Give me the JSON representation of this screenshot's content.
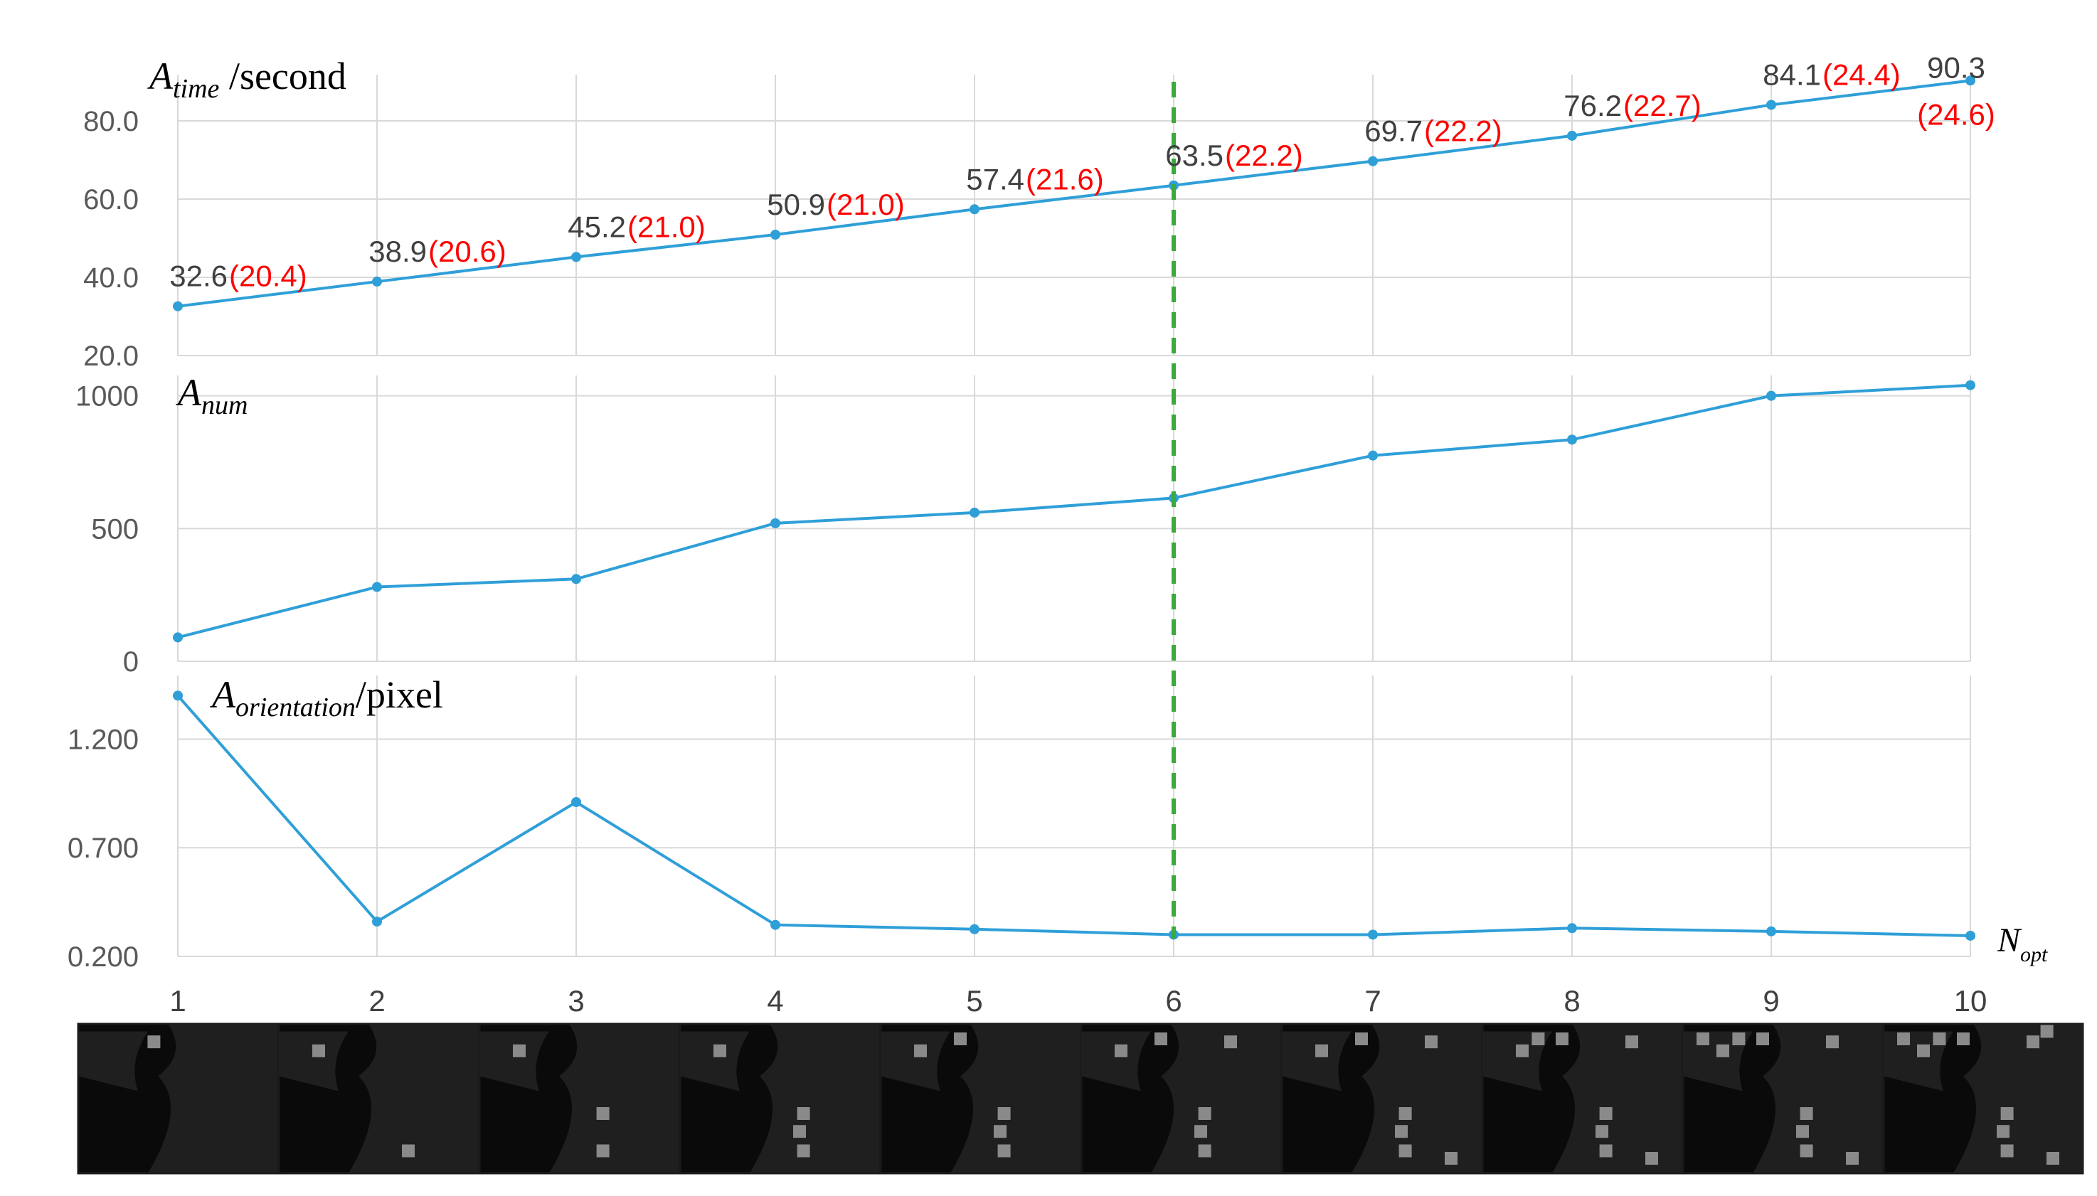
{
  "chart_data": {
    "type": "line",
    "x": [
      1,
      2,
      3,
      4,
      5,
      6,
      7,
      8,
      9,
      10
    ],
    "x_tick_labels": [
      "1",
      "2",
      "3",
      "4",
      "5",
      "6",
      "7",
      "8",
      "9",
      "10"
    ],
    "xlabel": {
      "base": "N",
      "sub": "opt"
    },
    "highlight_x": 6,
    "panels": [
      {
        "ylabel": {
          "base": "A",
          "sub": "time",
          "suffix": " /second"
        },
        "ylim": [
          20,
          90
        ],
        "y_ticks": [
          20,
          40,
          60,
          80
        ],
        "y_tick_labels": [
          "20.0",
          "40.0",
          "60.0",
          "80.0"
        ],
        "values": [
          32.6,
          38.9,
          45.2,
          50.9,
          57.4,
          63.5,
          69.7,
          76.2,
          84.1,
          90.3
        ],
        "value_labels": [
          "32.6",
          "38.9",
          "45.2",
          "50.9",
          "57.4",
          "63.5",
          "69.7",
          "76.2",
          "84.1",
          "90.3"
        ],
        "secondary_labels": [
          "(20.4)",
          "(20.6)",
          "(21.0)",
          "(21.0)",
          "(21.6)",
          "(22.2)",
          "(22.2)",
          "(22.7)",
          "(24.4)",
          "(24.6)"
        ],
        "grid": true
      },
      {
        "ylabel": {
          "base": "A",
          "sub": "num",
          "suffix": ""
        },
        "ylim": [
          0,
          1050
        ],
        "y_ticks": [
          0,
          500,
          1000
        ],
        "y_tick_labels": [
          "0",
          "500",
          "1000"
        ],
        "values": [
          90,
          280,
          310,
          520,
          560,
          615,
          775,
          835,
          1000,
          1040
        ],
        "grid": true
      },
      {
        "ylabel": {
          "base": "A",
          "sub": "orientation",
          "suffix": "/pixel"
        },
        "ylim": [
          0.2,
          1.46
        ],
        "y_ticks": [
          0.2,
          0.7,
          1.2
        ],
        "y_tick_labels": [
          "0.200",
          "0.700",
          "1.200"
        ],
        "values": [
          1.4,
          0.36,
          0.91,
          0.345,
          0.325,
          0.3,
          0.3,
          0.33,
          0.315,
          0.295
        ],
        "grid": true
      }
    ],
    "colors": {
      "line": "#2f9fd8",
      "secondary_label": "#ff0000",
      "highlight": "#3caa3c",
      "grid": "#d9d9d9"
    }
  },
  "thumbnails": {
    "count": 10,
    "description_icon": "satellite-image-thumbnail"
  }
}
